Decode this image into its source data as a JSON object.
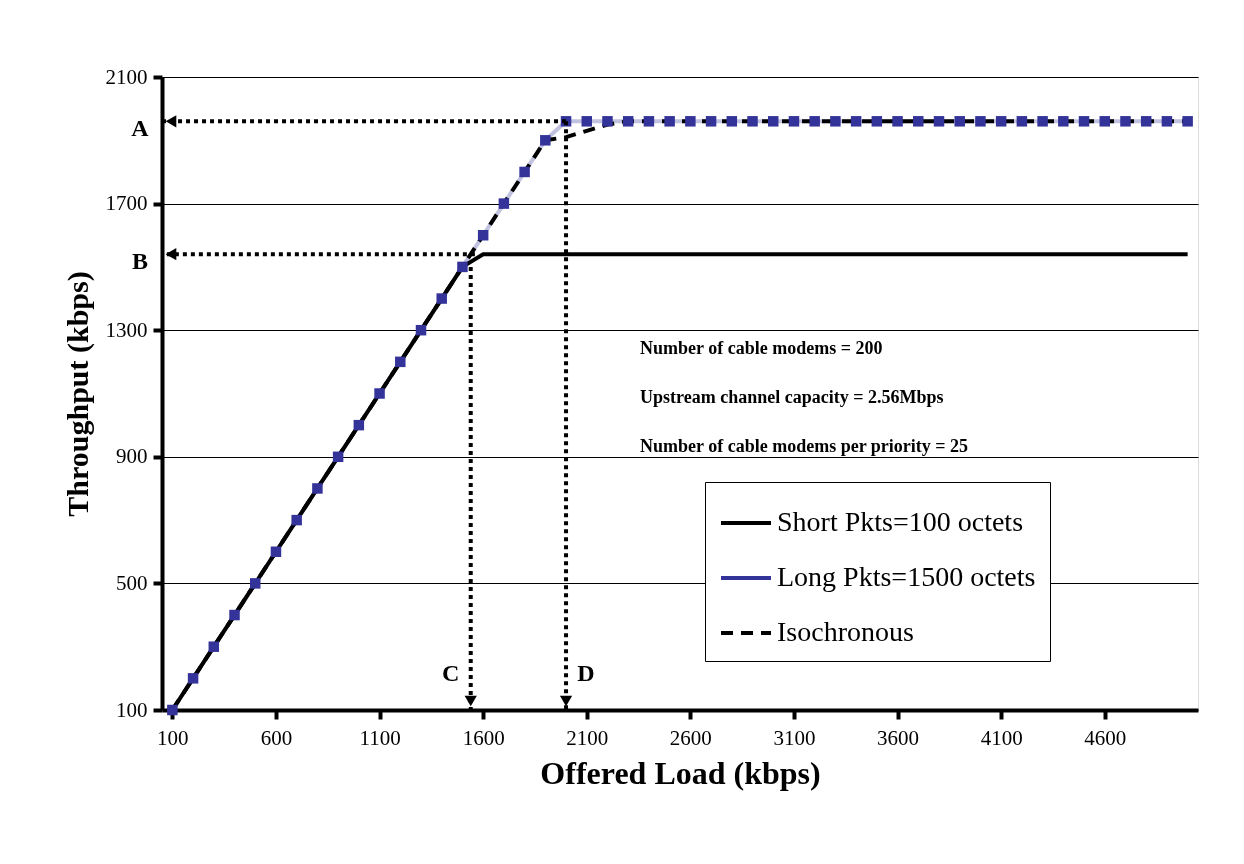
{
  "chart_data": {
    "type": "line",
    "xlabel": "Offered Load (kbps)",
    "ylabel": "Throughput (kbps)",
    "x": [
      100,
      200,
      300,
      400,
      500,
      600,
      700,
      800,
      900,
      1000,
      1100,
      1200,
      1300,
      1400,
      1500,
      1600,
      1700,
      1800,
      1900,
      2000,
      2100,
      2200,
      2300,
      2400,
      2500,
      2600,
      2700,
      2800,
      2900,
      3000,
      3100,
      3200,
      3300,
      3400,
      3500,
      3600,
      3700,
      3800,
      3900,
      4000,
      4100,
      4200,
      4300,
      4400,
      4500,
      4600,
      4700,
      4800,
      4900,
      5000
    ],
    "series": [
      {
        "name": "Short Pkts=100 octets",
        "color": "#000000",
        "line_style": "solid",
        "marker": "none",
        "values": [
          100,
          200,
          300,
          400,
          500,
          600,
          700,
          800,
          900,
          1000,
          1100,
          1200,
          1300,
          1400,
          1500,
          1540,
          1540,
          1540,
          1540,
          1540,
          1540,
          1540,
          1540,
          1540,
          1540,
          1540,
          1540,
          1540,
          1540,
          1540,
          1540,
          1540,
          1540,
          1540,
          1540,
          1540,
          1540,
          1540,
          1540,
          1540,
          1540,
          1540,
          1540,
          1540,
          1540,
          1540,
          1540,
          1540,
          1540,
          1540
        ]
      },
      {
        "name": "Long Pkts=1500 octets",
        "color": "#333399",
        "line_style": "solid",
        "marker": "square",
        "values": [
          100,
          200,
          300,
          400,
          500,
          600,
          700,
          800,
          900,
          1000,
          1100,
          1200,
          1300,
          1400,
          1500,
          1600,
          1700,
          1800,
          1900,
          1960,
          1960,
          1960,
          1960,
          1960,
          1960,
          1960,
          1960,
          1960,
          1960,
          1960,
          1960,
          1960,
          1960,
          1960,
          1960,
          1960,
          1960,
          1960,
          1960,
          1960,
          1960,
          1960,
          1960,
          1960,
          1960,
          1960,
          1960,
          1960,
          1960,
          1960
        ]
      },
      {
        "name": "Isochronous",
        "color": "#000000",
        "line_style": "dashed",
        "marker": "none",
        "values": [
          100,
          200,
          300,
          400,
          500,
          600,
          700,
          800,
          900,
          1000,
          1100,
          1200,
          1300,
          1400,
          1500,
          1600,
          1700,
          1800,
          1900,
          1910,
          1930,
          1950,
          1960,
          1960,
          1960,
          1960,
          1960,
          1960,
          1960,
          1960,
          1960,
          1960,
          1960,
          1960,
          1960,
          1960,
          1960,
          1960,
          1960,
          1960,
          1960,
          1960,
          1960,
          1960,
          1960,
          1960,
          1960,
          1960,
          1960,
          1960
        ]
      }
    ],
    "xlim": [
      50,
      5050
    ],
    "xticks": [
      100,
      600,
      1100,
      1600,
      2100,
      2600,
      3100,
      3600,
      4100,
      4600
    ],
    "ylim": [
      100,
      2100
    ],
    "yticks": [
      100,
      500,
      900,
      1300,
      1700,
      2100
    ],
    "grid": "y",
    "legend": "bottom right",
    "annotations": [
      {
        "text": "A",
        "x": 2000,
        "y": 1960
      },
      {
        "text": "B",
        "x": 1560,
        "y": 1540
      },
      {
        "text": "C",
        "x": 1540,
        "y": 1500
      },
      {
        "text": "D",
        "x": 2000,
        "y": 1960
      },
      "Number of cable modems = 200",
      "Upstream channel capacity = 2.56Mbps",
      "Number of cable modems per priority = 25"
    ]
  }
}
